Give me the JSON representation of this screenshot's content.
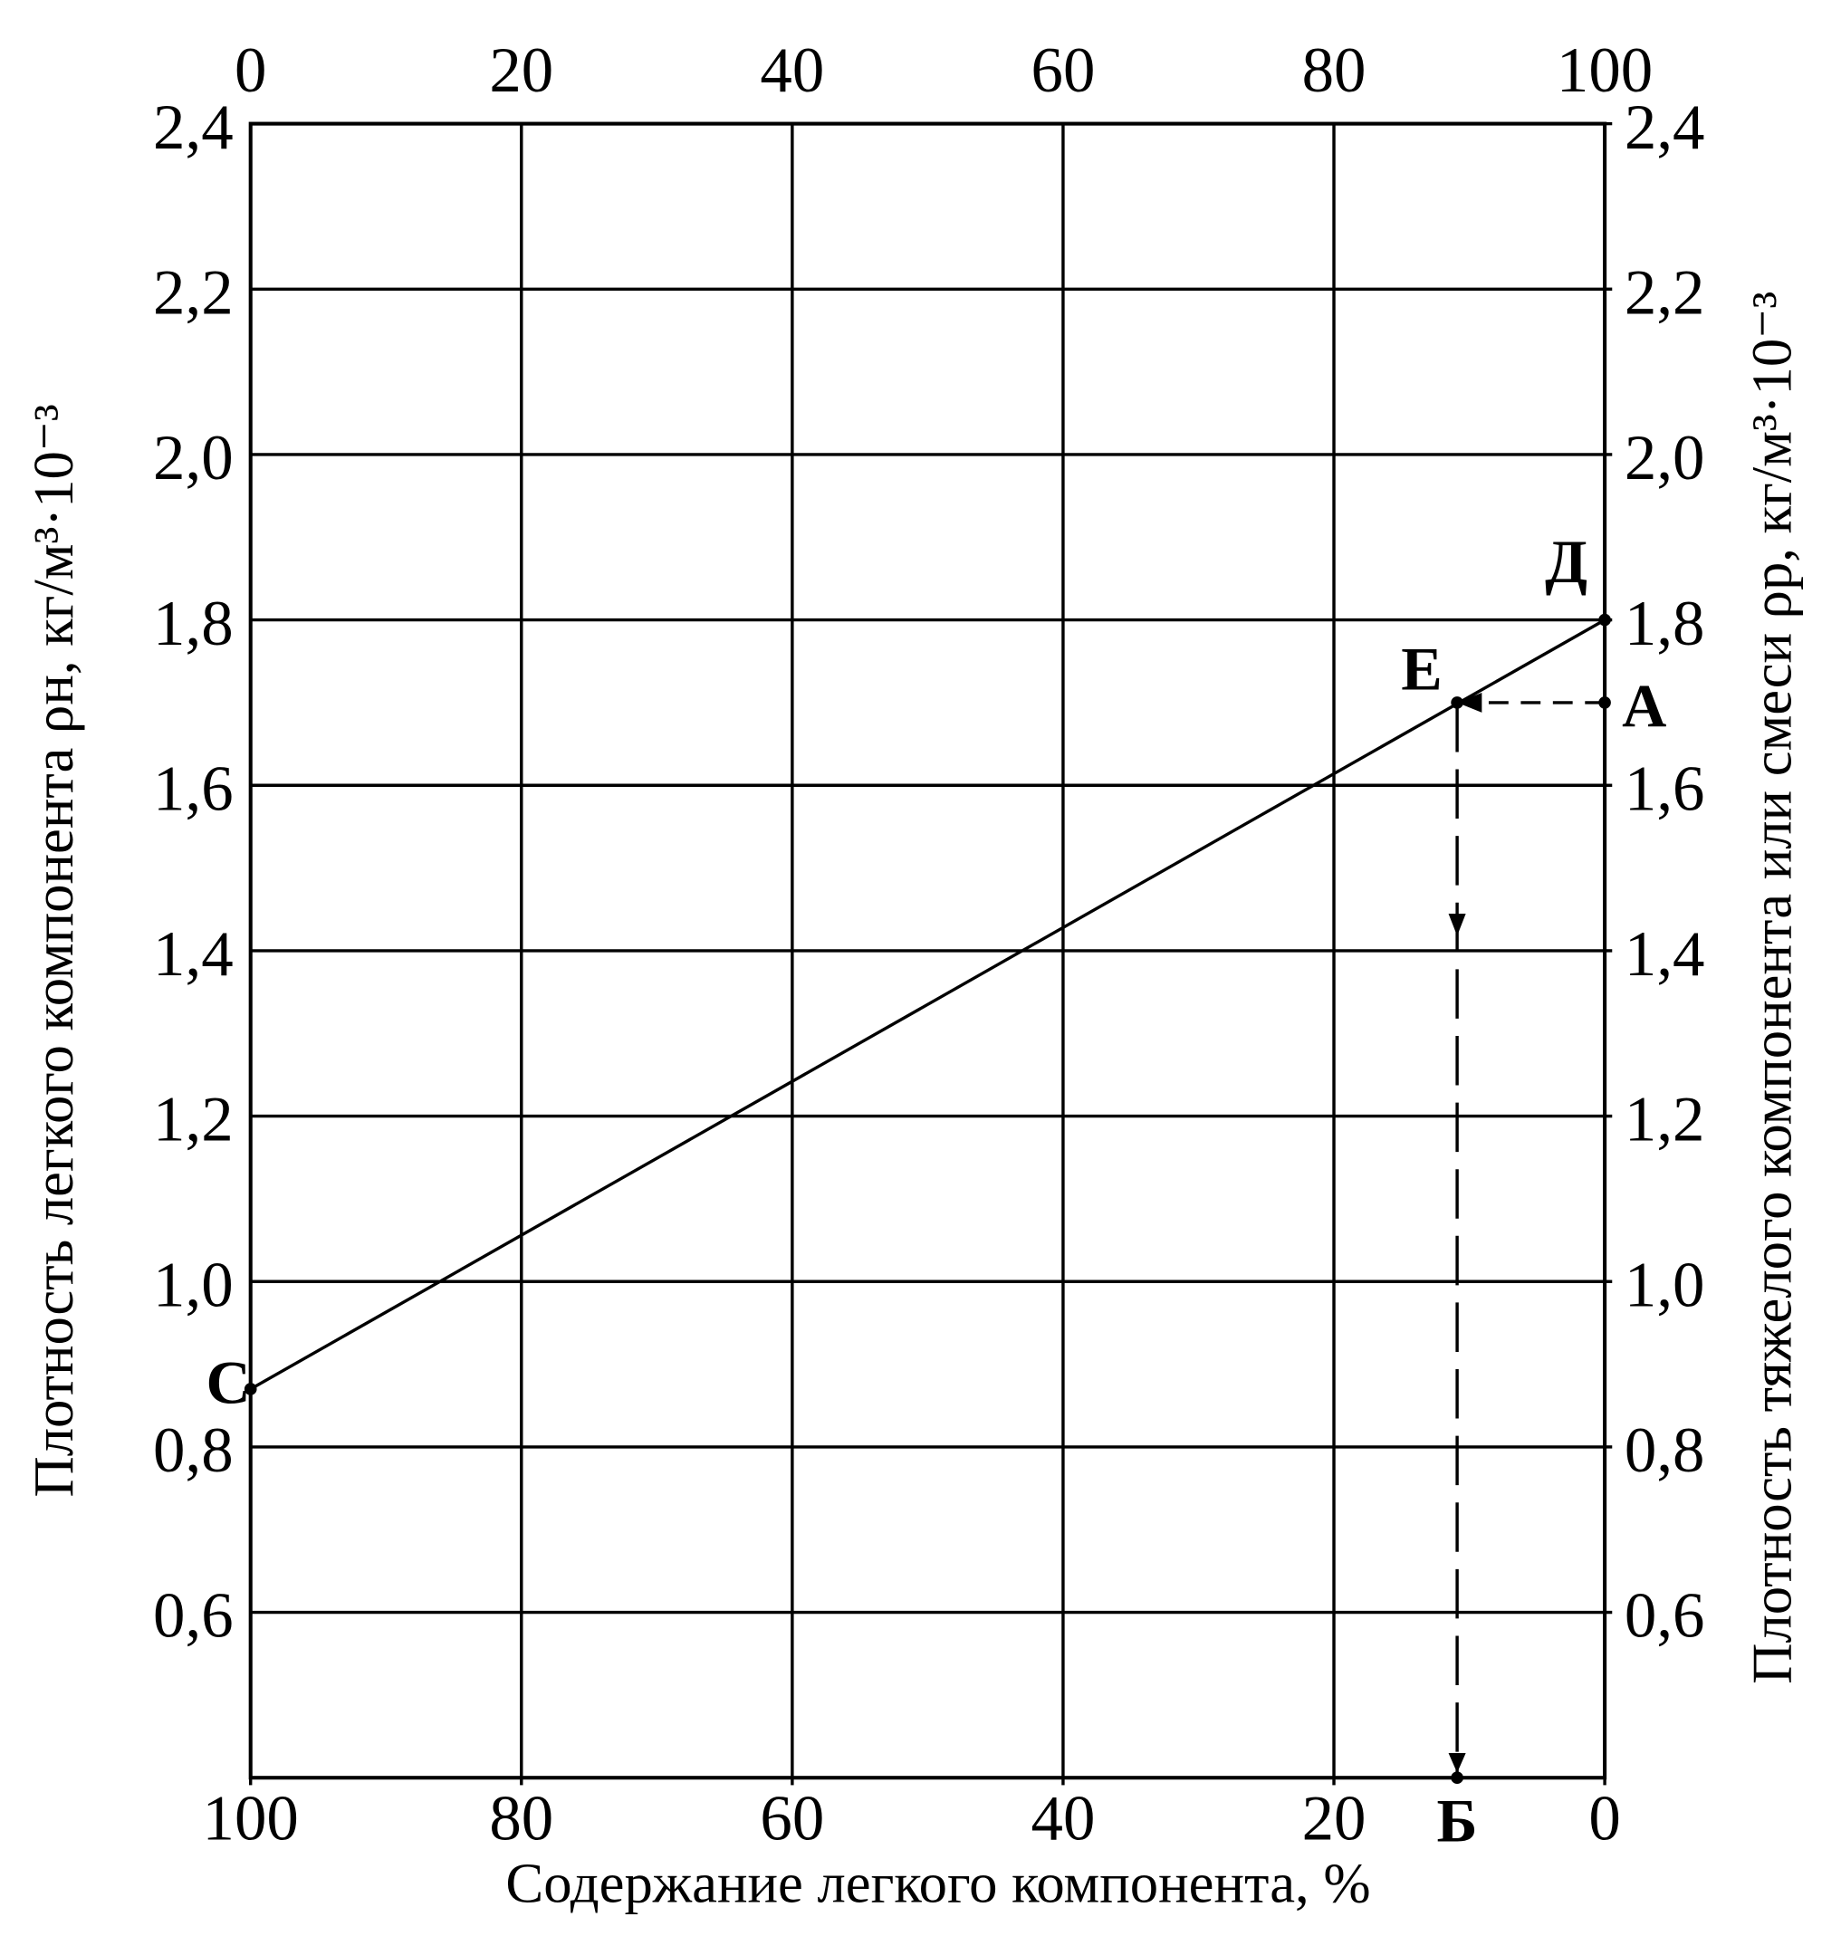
{
  "chart_data": {
    "type": "line",
    "x_label": "Содержание легкого компонента, %",
    "y_label": "Плотность легкого компонента  ρн, кг/м³·10⁻³",
    "y2_label": "Плотность тяжелого компонента или смеси  ρр, кг/м³·10⁻³",
    "xlim": [
      0,
      100
    ],
    "xticks": [
      0,
      20,
      40,
      60,
      80,
      100
    ],
    "x2lim": [
      100,
      0
    ],
    "x2ticks": [
      100,
      80,
      60,
      40,
      20,
      0
    ],
    "ylim": [
      0.4,
      2.4
    ],
    "yticks": [
      {
        "value": 0.6,
        "label": "0,6"
      },
      {
        "value": 0.8,
        "label": "0,8"
      },
      {
        "value": 1.0,
        "label": "1,0"
      },
      {
        "value": 1.2,
        "label": "1,2"
      },
      {
        "value": 1.4,
        "label": "1,4"
      },
      {
        "value": 1.6,
        "label": "1,6"
      },
      {
        "value": 1.8,
        "label": "1,8"
      },
      {
        "value": 2.0,
        "label": "2,0"
      },
      {
        "value": 2.2,
        "label": "2,2"
      },
      {
        "value": 2.4,
        "label": "2,4"
      }
    ],
    "y2lim": [
      0.4,
      2.4
    ],
    "y2ticks": [
      {
        "value": 0.6,
        "label": "0,6"
      },
      {
        "value": 0.8,
        "label": "0,8"
      },
      {
        "value": 1.0,
        "label": "1,0"
      },
      {
        "value": 1.2,
        "label": "1,2"
      },
      {
        "value": 1.4,
        "label": "1,4"
      },
      {
        "value": 1.6,
        "label": "1,6"
      },
      {
        "value": 1.8,
        "label": "1,8"
      },
      {
        "value": 2.0,
        "label": "2,0"
      },
      {
        "value": 2.2,
        "label": "2,2"
      },
      {
        "value": 2.4,
        "label": "2,4"
      }
    ],
    "grid": true,
    "series": [
      {
        "color": "#000000",
        "x": [
          0,
          100
        ],
        "values": [
          0.87,
          1.8
        ]
      }
    ],
    "points": [
      {
        "label": "С",
        "x": 0,
        "y": 0.87
      },
      {
        "label": "Д",
        "x": 100,
        "y": 1.8
      },
      {
        "label": "Е",
        "x": 89.1,
        "y": 1.7
      },
      {
        "label": "А",
        "x": 100,
        "y": 1.7
      },
      {
        "label": "Б",
        "x": 89.1,
        "y": 0.4
      }
    ]
  }
}
